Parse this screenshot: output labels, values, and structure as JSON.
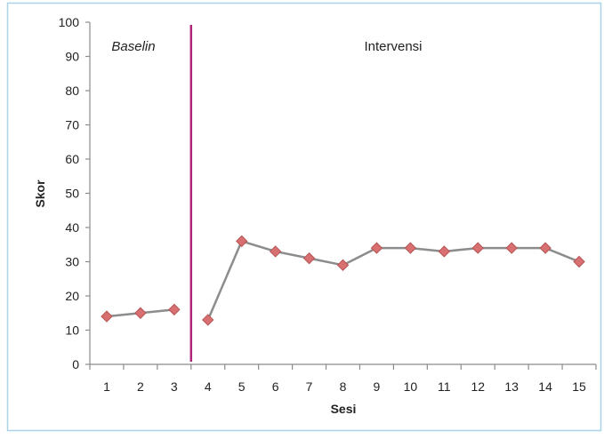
{
  "chart_data": {
    "type": "line",
    "xlabel": "Sesi",
    "ylabel": "Skor",
    "x_ticks": [
      "1",
      "2",
      "3",
      "4",
      "5",
      "6",
      "7",
      "8",
      "9",
      "10",
      "11",
      "12",
      "13",
      "14",
      "15"
    ],
    "y_ticks": [
      "0",
      "10",
      "20",
      "30",
      "40",
      "50",
      "60",
      "70",
      "80",
      "90",
      "100"
    ],
    "ylim": [
      0,
      100
    ],
    "xlim": [
      0.5,
      15.5
    ],
    "grid": false,
    "phase_line_x": 3.5,
    "phases": [
      {
        "label": "Baselin",
        "sessions": [
          1,
          2,
          3
        ],
        "values": [
          14,
          15,
          16
        ]
      },
      {
        "label": "Intervensi",
        "sessions": [
          4,
          5,
          6,
          7,
          8,
          9,
          10,
          11,
          12,
          13,
          14,
          15
        ],
        "values": [
          13,
          36,
          33,
          31,
          29,
          34,
          34,
          33,
          34,
          34,
          34,
          30
        ]
      }
    ],
    "colors": {
      "line": "#8c8c8c",
      "marker_fill": "#d86f70",
      "marker_stroke": "#b55556",
      "phase_line": "#b0247a",
      "axis": "#8c8c8c",
      "frame": "#a8d3e8"
    }
  }
}
